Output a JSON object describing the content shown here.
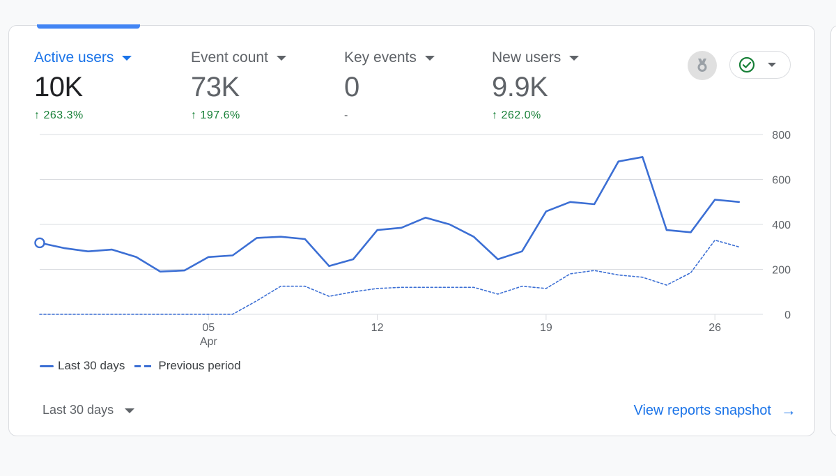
{
  "metrics": [
    {
      "label": "Active users",
      "value": "10K",
      "delta": "263.3%",
      "trend": "up"
    },
    {
      "label": "Event count",
      "value": "73K",
      "delta": "197.6%",
      "trend": "up"
    },
    {
      "label": "Key events",
      "value": "0",
      "delta": "-",
      "trend": "none"
    },
    {
      "label": "New users",
      "value": "9.9K",
      "delta": "262.0%",
      "trend": "up"
    }
  ],
  "toolbar": {
    "insights_icon": "award-ribbon-icon",
    "status_icon": "check-circle-icon"
  },
  "footer": {
    "date_range": "Last 30 days",
    "view_link": "View reports snapshot"
  },
  "colors": {
    "accent": "#1a73e8",
    "series": "#3c6fd4",
    "positive": "#188038"
  },
  "chart_data": {
    "type": "line",
    "x_tick_labels": [
      {
        "day": 5,
        "label": "05",
        "sublabel": "Apr"
      },
      {
        "day": 12,
        "label": "12"
      },
      {
        "day": 19,
        "label": "19"
      },
      {
        "day": 26,
        "label": "26"
      }
    ],
    "x_range": [
      -2,
      27.7
    ],
    "y_ticks": [
      "800",
      "600",
      "400",
      "200",
      "0"
    ],
    "ylim": [
      0,
      800
    ],
    "grid": true,
    "legend_position": "bottom-left",
    "series": [
      {
        "name": "Last 30 days",
        "style": "solid",
        "x": [
          -2,
          -1,
          0,
          1,
          2,
          3,
          4,
          5,
          6,
          7,
          8,
          9,
          10,
          11,
          12,
          13,
          14,
          15,
          16,
          17,
          18,
          19,
          20,
          21,
          22,
          23,
          24,
          25,
          26,
          27,
          28
        ],
        "values": [
          318,
          295,
          280,
          288,
          255,
          190,
          195,
          255,
          262,
          340,
          345,
          335,
          215,
          245,
          375,
          385,
          430,
          400,
          345,
          245,
          280,
          458,
          500,
          490,
          680,
          700,
          375,
          365,
          510,
          500,
          480
        ]
      },
      {
        "name": "Previous period",
        "style": "dashed",
        "x": [
          -2,
          -1,
          0,
          1,
          2,
          3,
          4,
          5,
          6,
          7,
          8,
          9,
          10,
          11,
          12,
          13,
          14,
          15,
          16,
          17,
          18,
          19,
          20,
          21,
          22,
          23,
          24,
          25,
          26,
          27,
          28
        ],
        "values": [
          0,
          0,
          0,
          0,
          0,
          0,
          0,
          0,
          0,
          60,
          125,
          125,
          80,
          100,
          115,
          120,
          120,
          120,
          120,
          90,
          125,
          115,
          180,
          195,
          175,
          165,
          130,
          185,
          330,
          300,
          290
        ]
      }
    ]
  }
}
